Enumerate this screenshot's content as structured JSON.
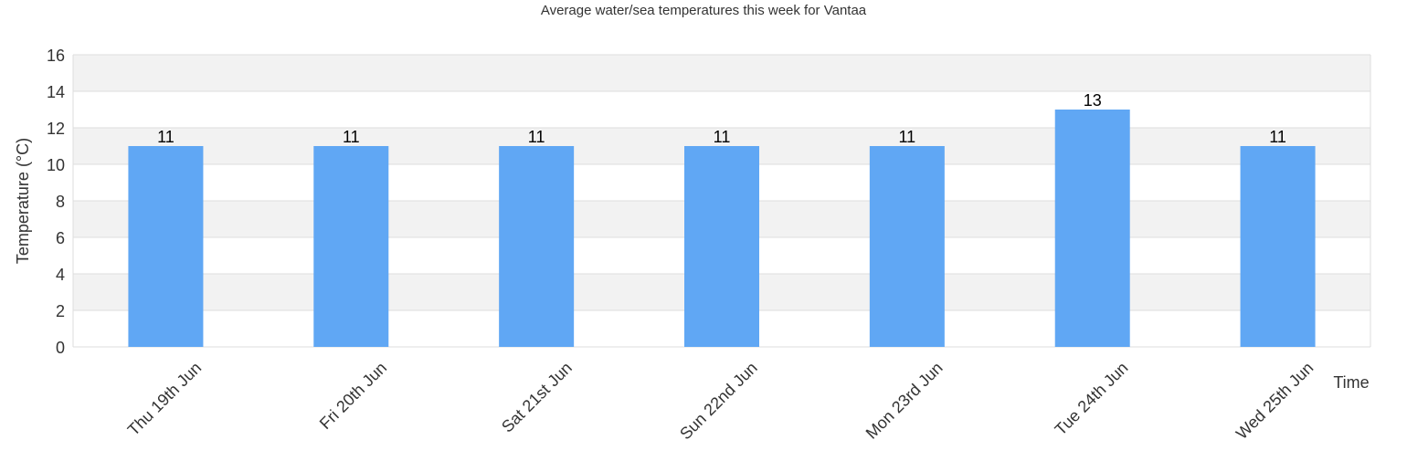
{
  "chart_data": {
    "type": "bar",
    "title": "Average water/sea temperatures this week for Vantaa",
    "xlabel": "Time",
    "ylabel": "Temperature (°C)",
    "categories": [
      "Thu 19th Jun",
      "Fri 20th Jun",
      "Sat 21st Jun",
      "Sun 22nd Jun",
      "Mon 23rd Jun",
      "Tue 24th Jun",
      "Wed 25th Jun"
    ],
    "values": [
      11,
      11,
      11,
      11,
      11,
      13,
      11
    ],
    "ylim": [
      0,
      16
    ],
    "yticks": [
      0,
      2,
      4,
      6,
      8,
      10,
      12,
      14,
      16
    ],
    "grid": true,
    "legend": "none",
    "colors": {
      "bar": "#60a7f4",
      "band": "#f2f2f2",
      "gridline": "#dddddd",
      "text": "#333333"
    }
  }
}
